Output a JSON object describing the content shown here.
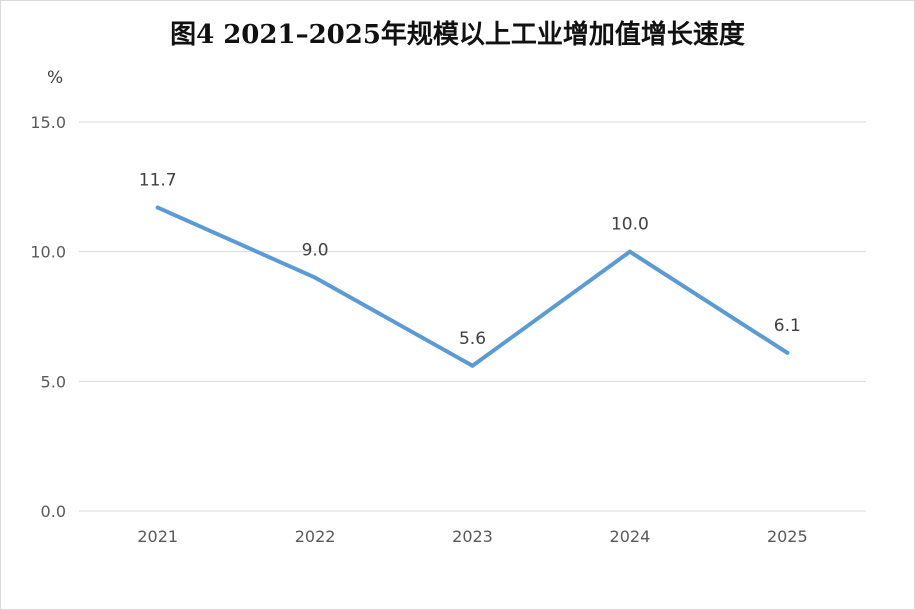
{
  "chart_data": {
    "type": "line",
    "title": "图4  2021–2025年规模以上工业增加值增长速度",
    "ylabel": "%",
    "xlabel": "",
    "categories": [
      "2021",
      "2022",
      "2023",
      "2024",
      "2025"
    ],
    "series": [
      {
        "values": [
          11.7,
          9.0,
          5.6,
          10.0,
          6.1
        ],
        "color": "#5b9bd5"
      }
    ],
    "data_labels": [
      "11.7",
      "9.0",
      "5.6",
      "10.0",
      "6.1"
    ],
    "ylim": [
      0,
      15
    ],
    "yticks": [
      "0.0",
      "5.0",
      "10.0",
      "15.0"
    ],
    "grid": true,
    "legend": "none"
  }
}
